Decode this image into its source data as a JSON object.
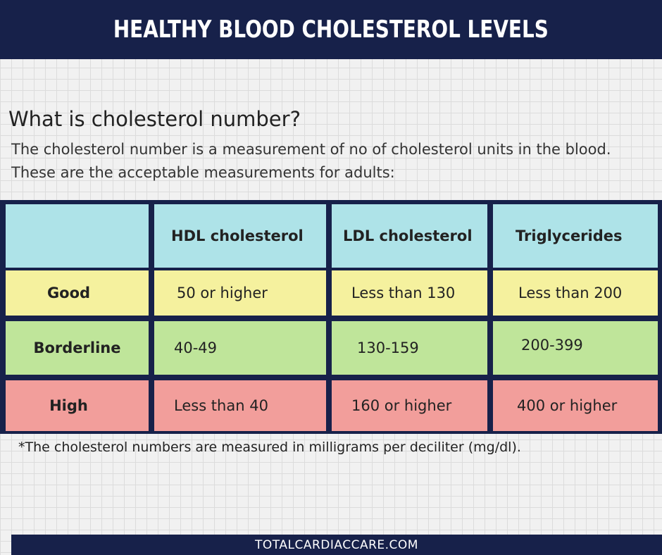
{
  "title": "HEALTHY BLOOD CHOLESTEROL LEVELS",
  "section": {
    "heading": "What is cholesterol number?",
    "description": "The cholesterol number is a measurement of no of cholesterol units in the blood. These are the acceptable measurements for adults:"
  },
  "table": {
    "columns": [
      "",
      "HDL cholesterol",
      "LDL cholesterol",
      "Triglycerides"
    ],
    "rows": [
      {
        "label": "Good",
        "cells": [
          "50 or higher",
          "Less than 130",
          "Less than 200"
        ]
      },
      {
        "label": "Borderline",
        "cells": [
          "40-49",
          "130-159",
          "200-399"
        ]
      },
      {
        "label": "High",
        "cells": [
          "Less than 40",
          "160 or higher",
          "400 or higher"
        ]
      }
    ]
  },
  "footnote": "*The cholesterol numbers are measured in milligrams per deciliter (mg/dl).",
  "footer": "TOTALCARDIACCARE.COM",
  "colors": {
    "navy": "#17214a",
    "header_row": "#aee3e8",
    "good": "#f5f19e",
    "borderline": "#bfe59a",
    "high": "#f29e9b"
  }
}
